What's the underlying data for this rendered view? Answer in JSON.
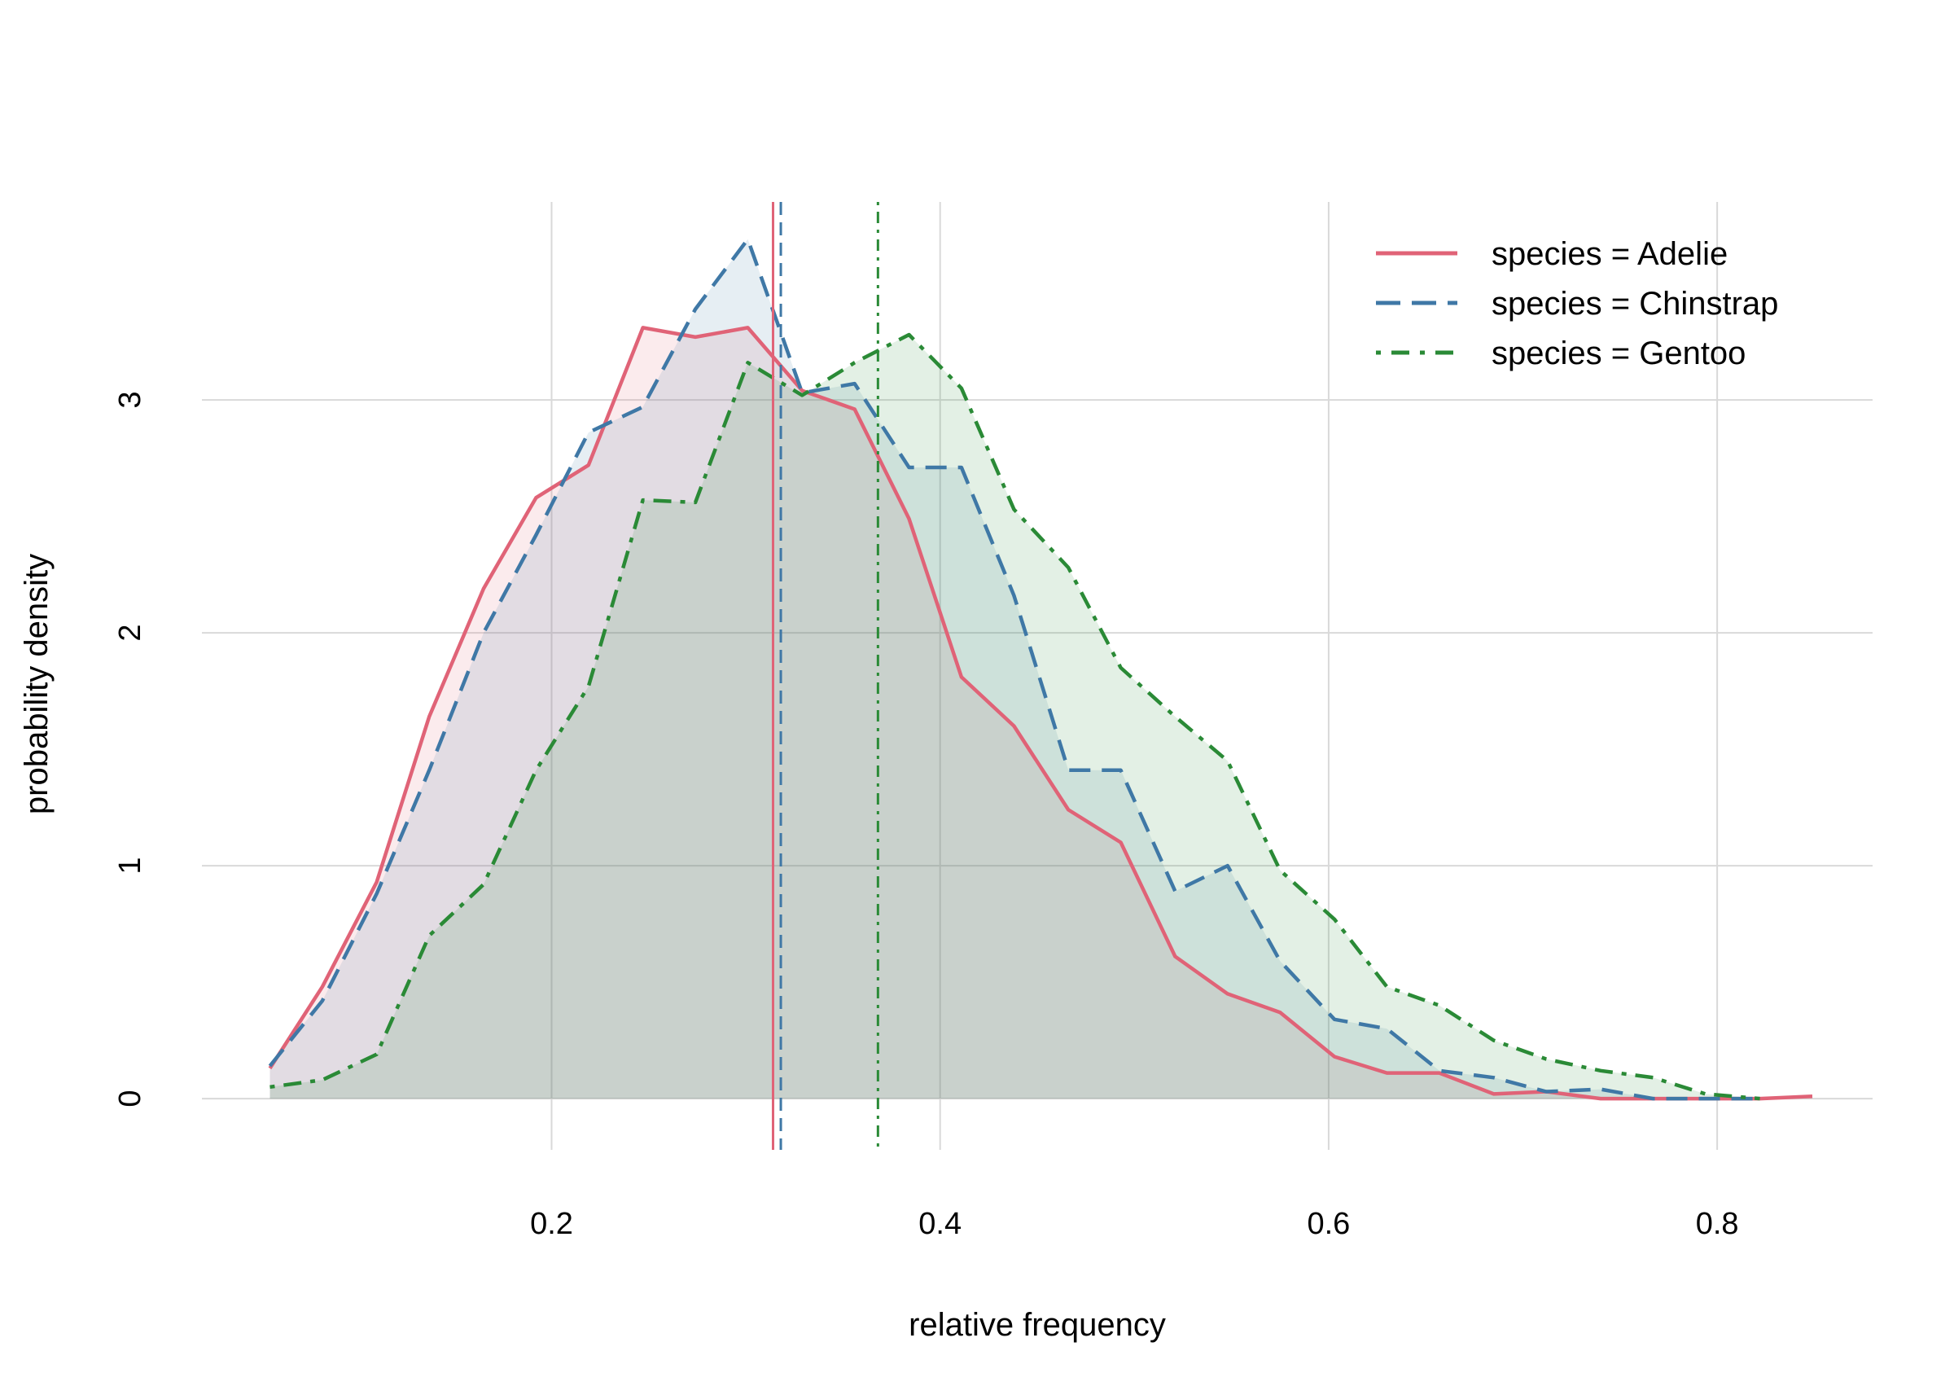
{
  "chart_data": {
    "type": "area",
    "xlabel": "relative frequency",
    "ylabel": "probability density",
    "xlim": [
      0.02,
      0.88
    ],
    "ylim": [
      -0.22,
      3.85
    ],
    "x_ticks": [
      0.2,
      0.4,
      0.6,
      0.8
    ],
    "x_tick_labels": [
      "0.2",
      "0.4",
      "0.6",
      "0.8"
    ],
    "y_ticks": [
      0,
      1,
      2,
      3
    ],
    "y_tick_labels": [
      "0",
      "1",
      "2",
      "3"
    ],
    "grid": true,
    "legend_position": "top-right",
    "series": [
      {
        "name": "species = Adelie",
        "color": "#e06377",
        "line_style": "solid",
        "mean": 0.314,
        "x": [
          0.055,
          0.082,
          0.11,
          0.137,
          0.165,
          0.192,
          0.219,
          0.247,
          0.274,
          0.301,
          0.329,
          0.356,
          0.384,
          0.411,
          0.438,
          0.466,
          0.493,
          0.521,
          0.548,
          0.575,
          0.603,
          0.63,
          0.657,
          0.685,
          0.712,
          0.74,
          0.767,
          0.794,
          0.822,
          0.849
        ],
        "y": [
          0.13,
          0.48,
          0.93,
          1.64,
          2.19,
          2.58,
          2.72,
          3.31,
          3.27,
          3.31,
          3.04,
          2.96,
          2.49,
          1.81,
          1.6,
          1.24,
          1.1,
          0.61,
          0.45,
          0.37,
          0.18,
          0.11,
          0.11,
          0.02,
          0.03,
          0.0,
          0.0,
          0.0,
          0.0,
          0.01
        ]
      },
      {
        "name": "species = Chinstrap",
        "color": "#3f78a6",
        "line_style": "dashed",
        "mean": 0.318,
        "x": [
          0.055,
          0.082,
          0.11,
          0.137,
          0.165,
          0.192,
          0.219,
          0.247,
          0.274,
          0.301,
          0.329,
          0.356,
          0.384,
          0.411,
          0.438,
          0.466,
          0.493,
          0.521,
          0.548,
          0.575,
          0.603,
          0.63,
          0.657,
          0.685,
          0.712,
          0.74,
          0.767,
          0.794,
          0.822
        ],
        "y": [
          0.14,
          0.42,
          0.88,
          1.41,
          2.0,
          2.42,
          2.86,
          2.97,
          3.39,
          3.69,
          3.03,
          3.07,
          2.71,
          2.71,
          2.16,
          1.41,
          1.41,
          0.89,
          1.0,
          0.59,
          0.34,
          0.3,
          0.12,
          0.09,
          0.03,
          0.04,
          0.0,
          0.0,
          0.0
        ]
      },
      {
        "name": "species = Gentoo",
        "color": "#2a8a36",
        "line_style": "dotdash",
        "mean": 0.368,
        "x": [
          0.055,
          0.082,
          0.11,
          0.137,
          0.165,
          0.192,
          0.219,
          0.247,
          0.274,
          0.301,
          0.329,
          0.356,
          0.384,
          0.411,
          0.438,
          0.466,
          0.493,
          0.521,
          0.548,
          0.575,
          0.603,
          0.63,
          0.657,
          0.685,
          0.712,
          0.74,
          0.767,
          0.794,
          0.822
        ],
        "y": [
          0.05,
          0.08,
          0.19,
          0.7,
          0.92,
          1.41,
          1.77,
          2.57,
          2.56,
          3.16,
          3.02,
          3.16,
          3.28,
          3.05,
          2.53,
          2.28,
          1.85,
          1.64,
          1.45,
          0.98,
          0.77,
          0.48,
          0.4,
          0.25,
          0.17,
          0.12,
          0.09,
          0.02,
          0.0
        ]
      }
    ]
  }
}
